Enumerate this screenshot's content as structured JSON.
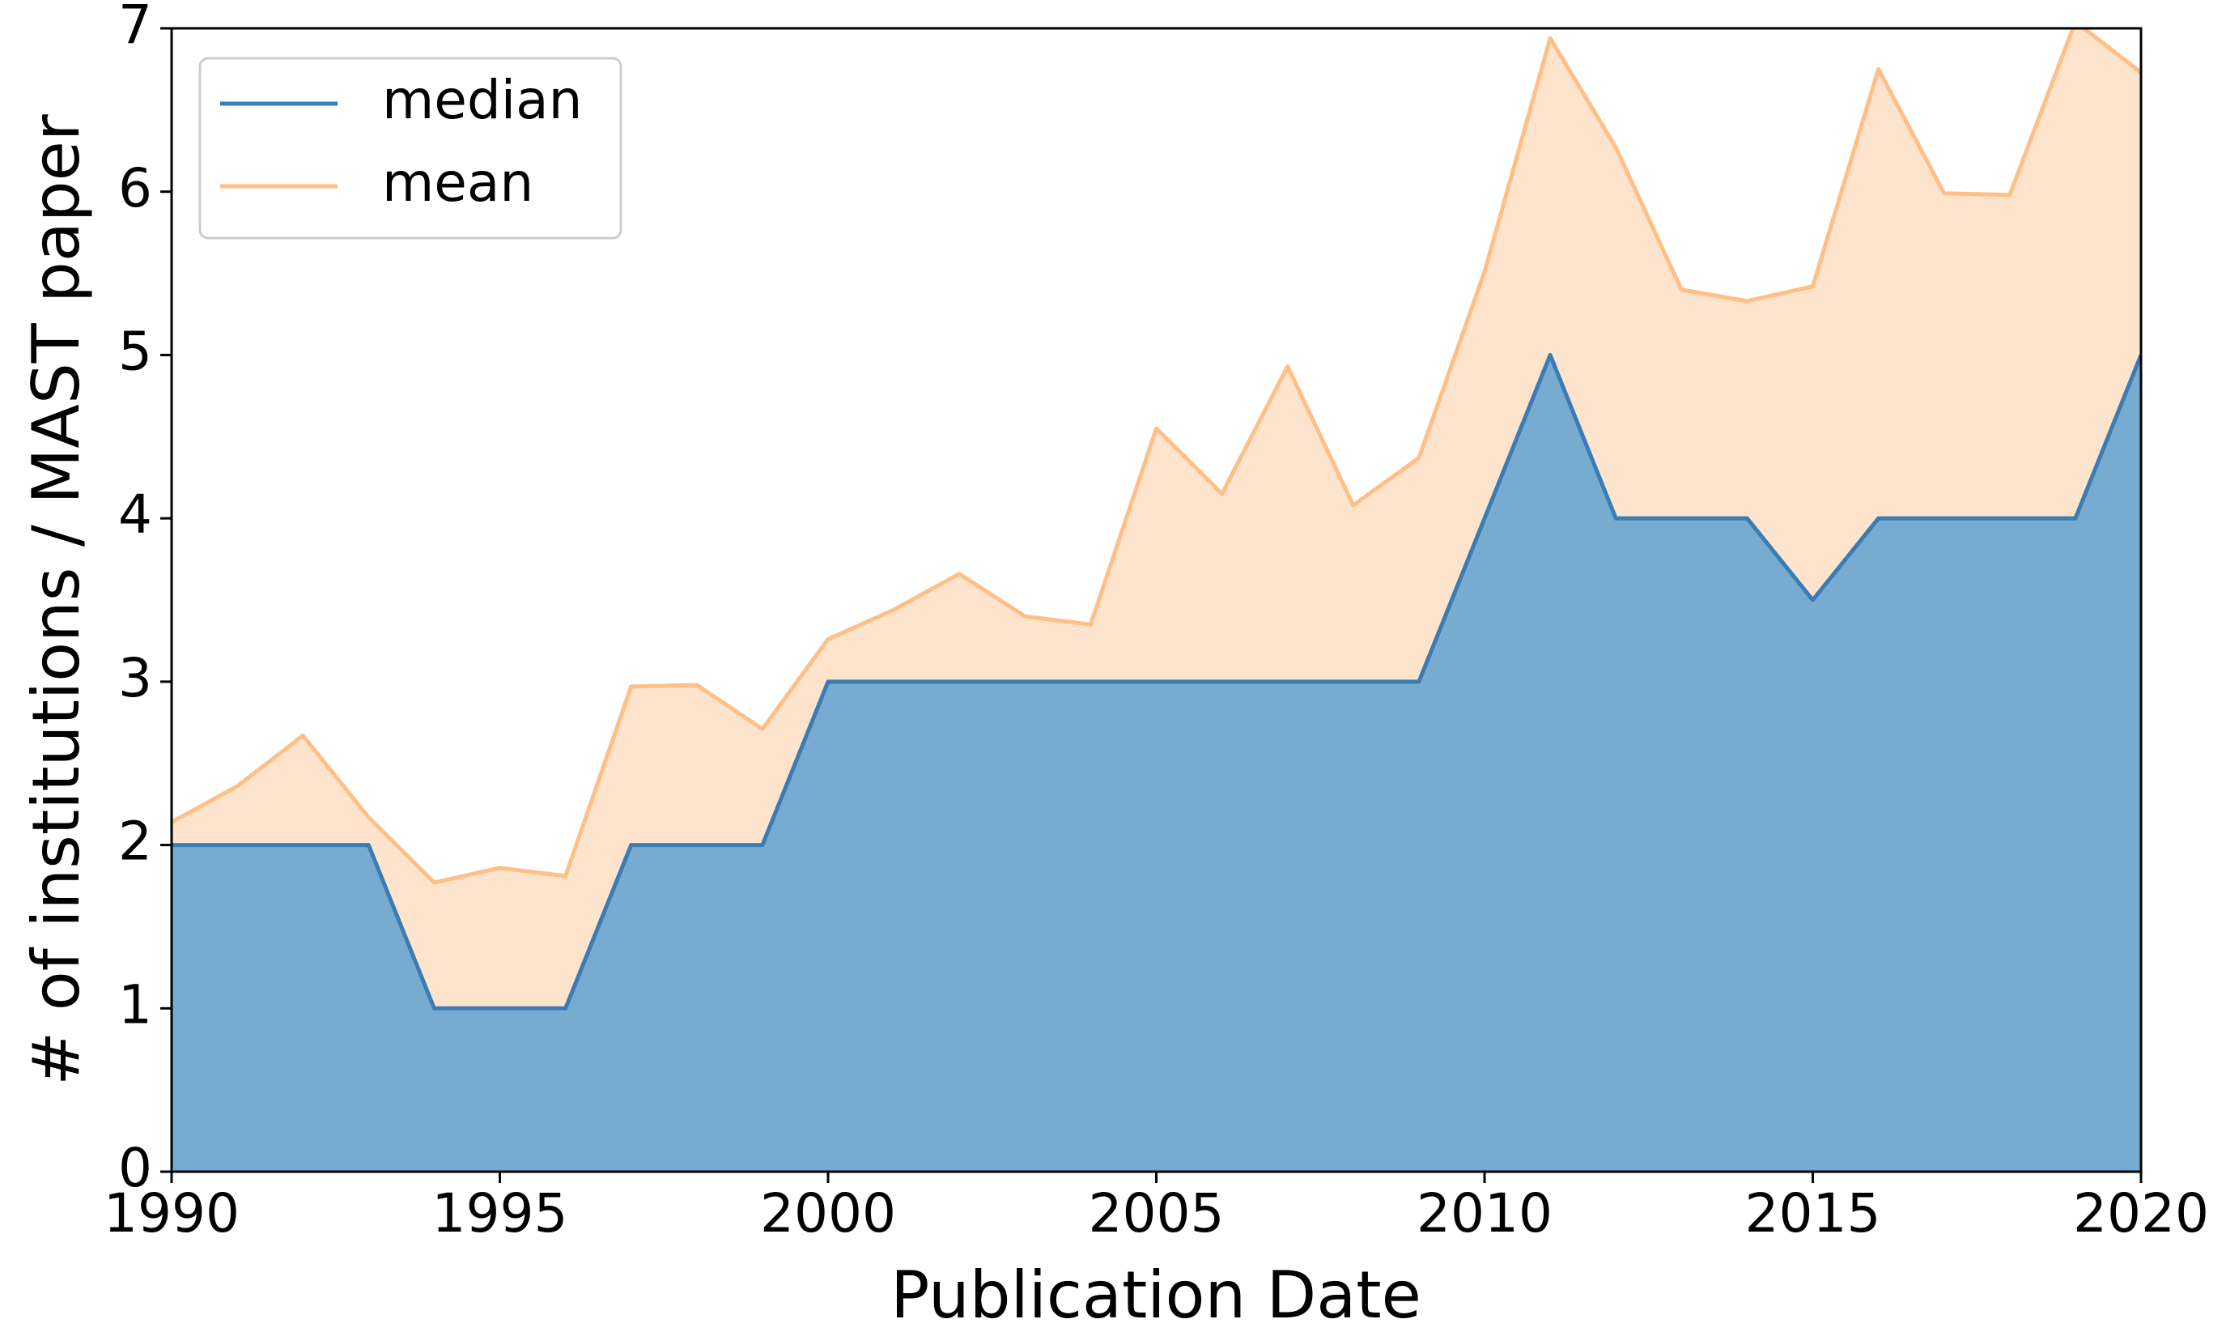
{
  "chart_data": {
    "type": "area",
    "xlabel": "Publication Date",
    "ylabel": "# of institutions / MAST paper",
    "x": [
      1990,
      1991,
      1992,
      1993,
      1994,
      1995,
      1996,
      1997,
      1998,
      1999,
      2000,
      2001,
      2002,
      2003,
      2004,
      2005,
      2006,
      2007,
      2008,
      2009,
      2010,
      2011,
      2012,
      2013,
      2014,
      2015,
      2016,
      2017,
      2018,
      2019,
      2020
    ],
    "series": [
      {
        "name": "median",
        "color": "#3a7db5",
        "fill": "#77abd0",
        "values": [
          2,
          2,
          2,
          2,
          1,
          1,
          1,
          2,
          2,
          2,
          3,
          3,
          3,
          3,
          3,
          3,
          3,
          3,
          3,
          3,
          4,
          5,
          4,
          4,
          4,
          3.5,
          4,
          4,
          4,
          4,
          5
        ]
      },
      {
        "name": "mean",
        "color": "#ffbf86",
        "fill": "#ffe4cd",
        "values": [
          2.14,
          2.36,
          2.67,
          2.17,
          1.77,
          1.86,
          1.81,
          2.97,
          2.98,
          2.71,
          3.26,
          3.44,
          3.66,
          3.4,
          3.35,
          4.55,
          4.15,
          4.93,
          4.08,
          4.37,
          5.51,
          6.94,
          6.27,
          5.4,
          5.33,
          5.42,
          6.75,
          5.99,
          5.98,
          7.04,
          6.73
        ]
      }
    ],
    "xlim": [
      1990,
      2020
    ],
    "xticks": [
      1990,
      1995,
      2000,
      2005,
      2010,
      2015,
      2020
    ],
    "ylim": [
      0,
      7
    ],
    "yticks": [
      0,
      1,
      2,
      3,
      4,
      5,
      6,
      7
    ],
    "legend": "upper left"
  }
}
